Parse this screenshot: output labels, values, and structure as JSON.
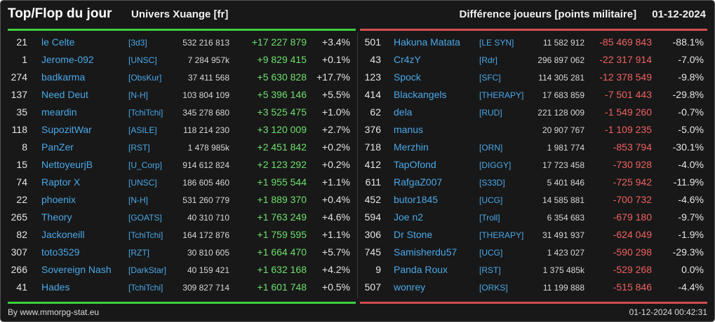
{
  "header": {
    "title": "Top/Flop du jour",
    "universe": "Univers Xuange [fr]",
    "metric": "Différence joueurs [points militaire]",
    "date": "01-12-2024"
  },
  "colors": {
    "gain_bar": "#3ecf3e",
    "loss_bar": "#d34d4d",
    "gain_text": "#6ee06e",
    "loss_text": "#f06262",
    "name_link": "#4aa8e8"
  },
  "top": [
    {
      "rank": "21",
      "name": "le Celte",
      "alliance": "[3d3]",
      "points": "532 216 813",
      "diff": "+17 227 879",
      "pct": "+3.4%"
    },
    {
      "rank": "1",
      "name": "Jerome-092",
      "alliance": "[UNSC]",
      "points": "7 284 957k",
      "diff": "+9 829 415",
      "pct": "+0.1%"
    },
    {
      "rank": "274",
      "name": "badkarma",
      "alliance": "[ObsKur]",
      "points": "37 411 568",
      "diff": "+5 630 828",
      "pct": "+17.7%"
    },
    {
      "rank": "137",
      "name": "Need Deut",
      "alliance": "[N-H]",
      "points": "103 804 109",
      "diff": "+5 396 146",
      "pct": "+5.5%"
    },
    {
      "rank": "35",
      "name": "meardin",
      "alliance": "[TchiTchi]",
      "points": "345 278 680",
      "diff": "+3 525 475",
      "pct": "+1.0%"
    },
    {
      "rank": "118",
      "name": "SupozitWar",
      "alliance": "[ASILE]",
      "points": "118 214 230",
      "diff": "+3 120 009",
      "pct": "+2.7%"
    },
    {
      "rank": "8",
      "name": "PanZer",
      "alliance": "[RST]",
      "points": "1 478 985k",
      "diff": "+2 451 842",
      "pct": "+0.2%"
    },
    {
      "rank": "15",
      "name": "NettoyeurjB",
      "alliance": "[U_Corp]",
      "points": "914 612 824",
      "diff": "+2 123 292",
      "pct": "+0.2%"
    },
    {
      "rank": "74",
      "name": "Raptor X",
      "alliance": "[UNSC]",
      "points": "186 605 460",
      "diff": "+1 955 544",
      "pct": "+1.1%"
    },
    {
      "rank": "22",
      "name": "phoenix",
      "alliance": "[N-H]",
      "points": "531 260 779",
      "diff": "+1 889 370",
      "pct": "+0.4%"
    },
    {
      "rank": "265",
      "name": "Theory",
      "alliance": "[GOATS]",
      "points": "40 310 710",
      "diff": "+1 763 249",
      "pct": "+4.6%"
    },
    {
      "rank": "82",
      "name": "Jackoneill",
      "alliance": "[TchiTchi]",
      "points": "164 172 876",
      "diff": "+1 759 595",
      "pct": "+1.1%"
    },
    {
      "rank": "307",
      "name": "toto3529",
      "alliance": "[RZT]",
      "points": "30 810 605",
      "diff": "+1 664 470",
      "pct": "+5.7%"
    },
    {
      "rank": "266",
      "name": "Sovereign Nash",
      "alliance": "[DarkStar]",
      "points": "40 159 421",
      "diff": "+1 632 168",
      "pct": "+4.2%"
    },
    {
      "rank": "41",
      "name": "Hades",
      "alliance": "[TchiTchi]",
      "points": "309 827 714",
      "diff": "+1 601 748",
      "pct": "+0.5%"
    }
  ],
  "flop": [
    {
      "rank": "501",
      "name": "Hakuna Matata",
      "alliance": "[LE SYN]",
      "points": "11 582 912",
      "diff": "-85 469 843",
      "pct": "-88.1%"
    },
    {
      "rank": "43",
      "name": "Cr4zY",
      "alliance": "[Rdr]",
      "points": "296 897 062",
      "diff": "-22 317 914",
      "pct": "-7.0%"
    },
    {
      "rank": "123",
      "name": "Spock",
      "alliance": "[SFC]",
      "points": "114 305 281",
      "diff": "-12 378 549",
      "pct": "-9.8%"
    },
    {
      "rank": "414",
      "name": "Blackangels",
      "alliance": "[THERAPY]",
      "points": "17 683 859",
      "diff": "-7 501 443",
      "pct": "-29.8%"
    },
    {
      "rank": "62",
      "name": "dela",
      "alliance": "[RUD]",
      "points": "221 128 009",
      "diff": "-1 549 260",
      "pct": "-0.7%"
    },
    {
      "rank": "376",
      "name": "manus",
      "alliance": "",
      "points": "20 907 767",
      "diff": "-1 109 235",
      "pct": "-5.0%"
    },
    {
      "rank": "718",
      "name": "Merzhin",
      "alliance": "[ORN]",
      "points": "1 981 774",
      "diff": "-853 794",
      "pct": "-30.1%"
    },
    {
      "rank": "412",
      "name": "TapOfond",
      "alliance": "[DIGGY]",
      "points": "17 723 458",
      "diff": "-730 928",
      "pct": "-4.0%"
    },
    {
      "rank": "611",
      "name": "RafgaZ007",
      "alliance": "[S33D]",
      "points": "5 401 846",
      "diff": "-725 942",
      "pct": "-11.9%"
    },
    {
      "rank": "452",
      "name": "butor1845",
      "alliance": "[UCG]",
      "points": "14 585 881",
      "diff": "-700 732",
      "pct": "-4.6%"
    },
    {
      "rank": "594",
      "name": "Joe n2",
      "alliance": "[Troll]",
      "points": "6 354 683",
      "diff": "-679 180",
      "pct": "-9.7%"
    },
    {
      "rank": "306",
      "name": "Dr Stone",
      "alliance": "[THERAPY]",
      "points": "31 491 937",
      "diff": "-624 049",
      "pct": "-1.9%"
    },
    {
      "rank": "745",
      "name": "Samisherdu57",
      "alliance": "[UCG]",
      "points": "1 423 027",
      "diff": "-590 298",
      "pct": "-29.3%"
    },
    {
      "rank": "9",
      "name": "Panda Roux",
      "alliance": "[RST]",
      "points": "1 375 485k",
      "diff": "-529 268",
      "pct": "0.0%"
    },
    {
      "rank": "507",
      "name": "wonrey",
      "alliance": "[ORKS]",
      "points": "11 199 888",
      "diff": "-515 846",
      "pct": "-4.4%"
    }
  ],
  "footer": {
    "credit": "By www.mmorpg-stat.eu",
    "timestamp": "01-12-2024 00:42:31"
  }
}
